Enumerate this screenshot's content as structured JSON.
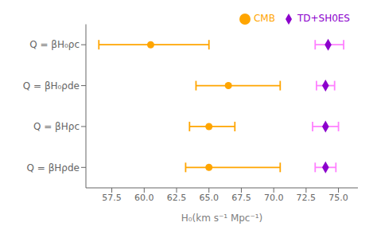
{
  "chart_data": {
    "type": "scatter",
    "xlabel": "H₀(km s⁻¹ Mpc⁻¹)",
    "categories": [
      "Q = βH₀ρc",
      "Q = βH₀ρde",
      "Q = βHρc",
      "Q = βHρde"
    ],
    "xlim": [
      55.5,
      76.5
    ],
    "xticks": [
      57.5,
      {
        "value": 60,
        "label": "60.0"
      },
      62.5,
      {
        "value": 65,
        "label": "65.0"
      },
      67.5,
      {
        "value": 70,
        "label": "70.0"
      },
      72.5,
      {
        "value": 75,
        "label": "75.0"
      }
    ],
    "grid": false,
    "legend": "upper right",
    "series": [
      {
        "name": "CMB",
        "color": "#FFA500",
        "marker": "circle",
        "values": [
          60.5,
          66.5,
          65.0,
          65.0
        ],
        "error": {
          "minus": [
            4.0,
            2.5,
            1.5,
            1.8
          ],
          "plus": [
            4.5,
            4.0,
            2.0,
            5.5
          ],
          "color": "#FFA500"
        }
      },
      {
        "name": "TD+SH0ES",
        "color": "#8B00CC",
        "marker": "diamond",
        "values": [
          74.2,
          74.0,
          74.0,
          74.0
        ],
        "error": {
          "minus": [
            1.0,
            0.7,
            1.0,
            0.8
          ],
          "plus": [
            1.2,
            0.7,
            1.0,
            0.8
          ],
          "color": "#FF80FF"
        }
      }
    ]
  }
}
